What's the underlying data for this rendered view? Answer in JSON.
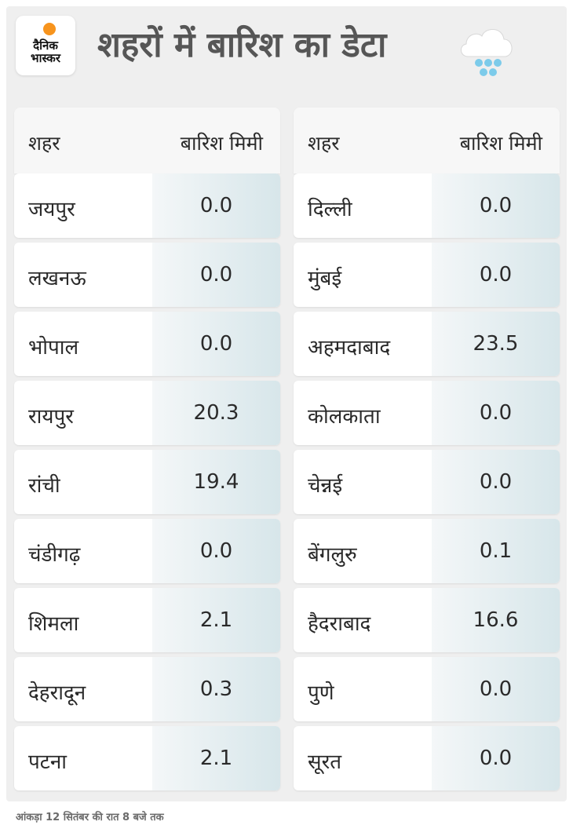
{
  "brand": {
    "logo_line1": "दैनिक",
    "logo_line2": "भास्कर",
    "accent_color": "#f7941d"
  },
  "title": "शहरों में बारिश का डेटा",
  "weather_icon": "cloud-rain-icon",
  "table": {
    "header_city": "शहर",
    "header_rain": "बारिश मिमी",
    "left": [
      {
        "city": "जयपुर",
        "rain": "0.0"
      },
      {
        "city": "लखनऊ",
        "rain": "0.0"
      },
      {
        "city": "भोपाल",
        "rain": "0.0"
      },
      {
        "city": "रायपुर",
        "rain": "20.3"
      },
      {
        "city": "रांची",
        "rain": "19.4"
      },
      {
        "city": "चंडीगढ़",
        "rain": "0.0"
      },
      {
        "city": "शिमला",
        "rain": "2.1"
      },
      {
        "city": "देहरादून",
        "rain": "0.3"
      },
      {
        "city": "पटना",
        "rain": "2.1"
      }
    ],
    "right": [
      {
        "city": "दिल्ली",
        "rain": "0.0"
      },
      {
        "city": "मुंबई",
        "rain": "0.0"
      },
      {
        "city": "अहमदाबाद",
        "rain": "23.5"
      },
      {
        "city": "कोलकाता",
        "rain": "0.0"
      },
      {
        "city": "चेन्नई",
        "rain": "0.0"
      },
      {
        "city": "बेंगलुरु",
        "rain": "0.1"
      },
      {
        "city": "हैदराबाद",
        "rain": "16.6"
      },
      {
        "city": "पुणे",
        "rain": "0.0"
      },
      {
        "city": "सूरत",
        "rain": "0.0"
      }
    ]
  },
  "footnote": "आंकड़ा 12 सितंबर की रात 8 बजे तक"
}
